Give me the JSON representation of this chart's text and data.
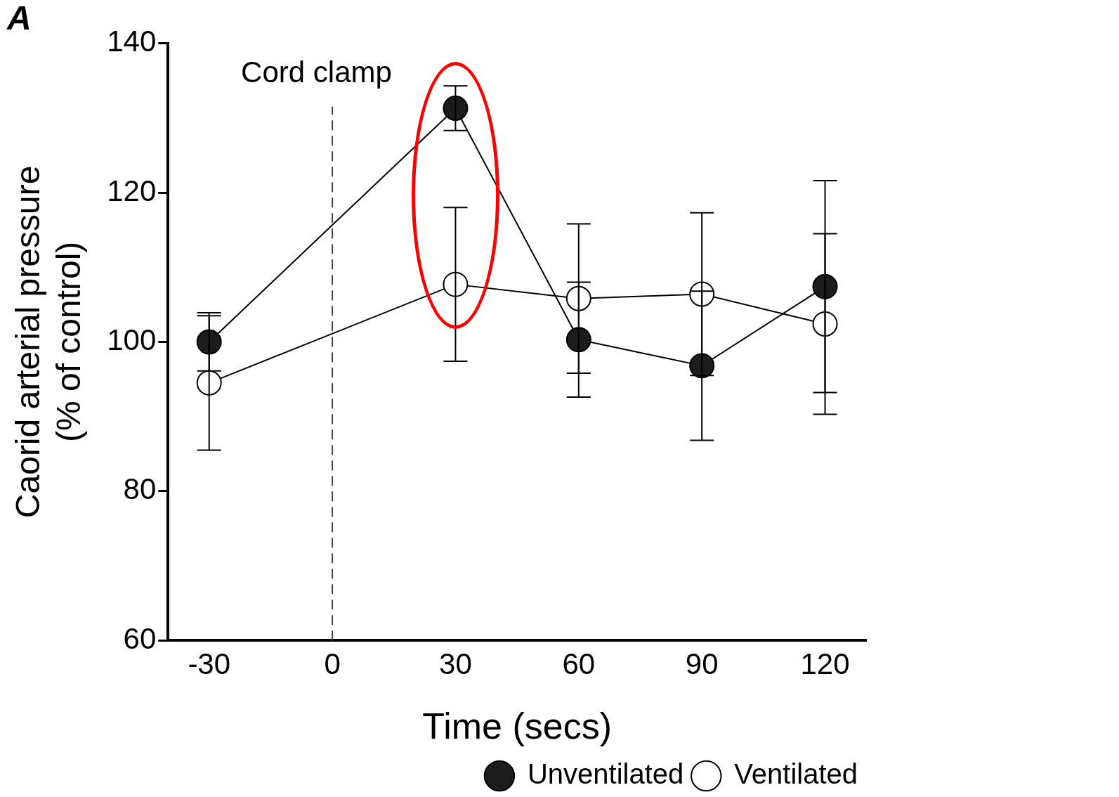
{
  "chart_data": {
    "type": "line",
    "title": "A",
    "xlabel": "Time (secs)",
    "ylabel": "Caorid arterial pressure\n(% of control)",
    "x": [
      -30,
      30,
      60,
      90,
      120
    ],
    "series": [
      {
        "name": "Unventilated",
        "color": "#1c1c1c",
        "values": [
          100,
          131.3,
          100.3,
          96.8,
          107.4
        ],
        "errors": [
          3.9,
          3,
          7.7,
          10,
          14.2
        ]
      },
      {
        "name": "Ventilated",
        "color": "#ffffff",
        "values": [
          94.5,
          107.7,
          105.8,
          106.4,
          102.4
        ],
        "errors": [
          9,
          10.3,
          10,
          10.9,
          12.1
        ]
      }
    ],
    "xlim": [
      -40,
      130
    ],
    "xticks": [
      -30,
      0,
      30,
      60,
      90,
      120
    ],
    "ylim": [
      60,
      140
    ],
    "yticks": [
      60,
      80,
      100,
      120,
      140
    ],
    "ref_lines": [
      {
        "axis": "x",
        "value": 0,
        "label": "Cord clamp",
        "line_style": "dashed"
      }
    ],
    "grid": false,
    "legend": "bottom right",
    "marker": "circle",
    "line_style": "solid"
  }
}
